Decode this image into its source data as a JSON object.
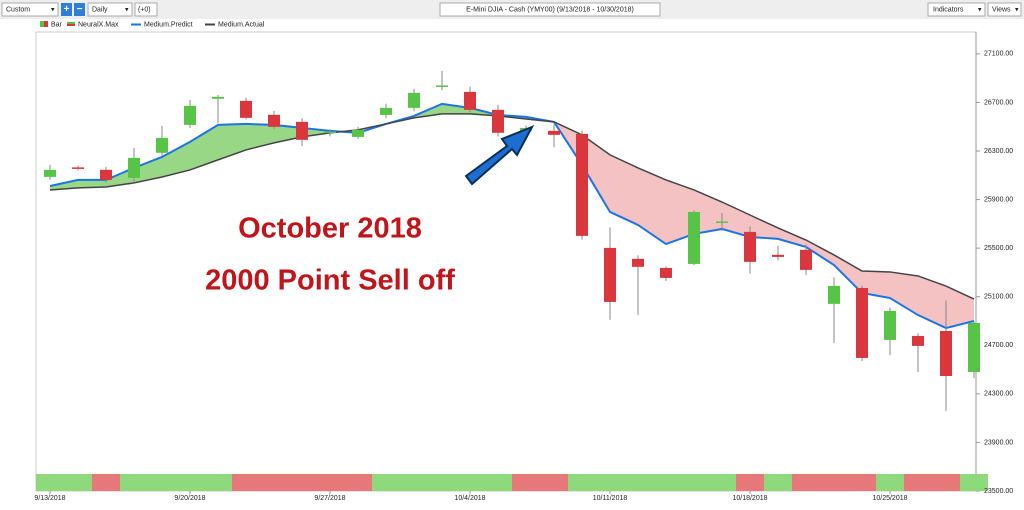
{
  "toolbar": {
    "preset": "Custom",
    "plus": "+",
    "minus": "−",
    "period": "Daily",
    "offset": "(+0)",
    "title": "E-Mini DJIA - Cash (YMY00) (9/13/2018 - 10/30/2018)",
    "indicators": "Indicators",
    "views": "Views"
  },
  "chart_data": {
    "type": "candlestick",
    "bar_legend": "Bar",
    "signal_legend": "NeuralX.Max",
    "annotations": [
      "October 2018",
      "2000 Point Sell off"
    ],
    "categories": [
      "9/13/2018",
      null,
      null,
      null,
      null,
      "9/20/2018",
      null,
      null,
      null,
      null,
      "9/27/2018",
      null,
      null,
      null,
      null,
      "10/4/2018",
      null,
      null,
      null,
      null,
      "10/11/2018",
      null,
      null,
      null,
      null,
      "10/18/2018",
      null,
      null,
      null,
      null,
      "10/25/2018",
      null,
      null,
      null
    ],
    "open": [
      26087,
      26165,
      26145,
      26079,
      26285,
      26515,
      26730,
      26713,
      26598,
      26540,
      26455,
      26416,
      26597,
      26655,
      26835,
      26787,
      26639,
      26466,
      26466,
      26441,
      25502,
      25412,
      25337,
      25370,
      25710,
      25634,
      25445,
      25486,
      25041,
      25172,
      24744,
      24777,
      24818,
      24480
    ],
    "high": [
      26186,
      26180,
      26170,
      26326,
      26507,
      26720,
      26760,
      26740,
      26630,
      26570,
      26480,
      26500,
      26690,
      26810,
      26960,
      26830,
      26680,
      26510,
      26520,
      26470,
      25670,
      25440,
      25350,
      25810,
      25790,
      25680,
      25520,
      25530,
      25260,
      25190,
      25010,
      24800,
      25070,
      24900
    ],
    "low": [
      26062,
      26140,
      26040,
      26040,
      26260,
      26490,
      26530,
      26560,
      26480,
      26340,
      26420,
      26400,
      26570,
      26630,
      26800,
      26620,
      26420,
      26460,
      26330,
      25570,
      24910,
      24950,
      25230,
      25360,
      25640,
      25290,
      25400,
      25280,
      24720,
      24570,
      24620,
      24480,
      24160,
      24430
    ],
    "close": [
      26145,
      26155,
      26062,
      26243,
      26408,
      26672,
      26746,
      26573,
      26499,
      26392,
      26460,
      26474,
      26655,
      26779,
      26840,
      26639,
      26450,
      26490,
      26433,
      25601,
      25057,
      25346,
      25255,
      25798,
      25720,
      25387,
      25428,
      25321,
      25189,
      24596,
      24983,
      24695,
      24447,
      24884
    ],
    "up_color": "#58c447",
    "down_color": "#d9363e",
    "series": [
      {
        "name": "Medium.Predict",
        "color": "#1c74e8",
        "values": [
          26012,
          26062,
          26062,
          26161,
          26251,
          26375,
          26515,
          26523,
          26515,
          26490,
          26466,
          26449,
          26523,
          26589,
          26688,
          26655,
          26597,
          26581,
          26540,
          26185,
          25798,
          25691,
          25534,
          25617,
          25658,
          25592,
          25576,
          25510,
          25361,
          25131,
          25089,
          24949,
          24842,
          24900
        ]
      },
      {
        "name": "Medium.Actual",
        "color": "#444444",
        "values": [
          25979,
          25996,
          26004,
          26037,
          26086,
          26144,
          26227,
          26309,
          26367,
          26416,
          26449,
          26474,
          26523,
          26573,
          26606,
          26606,
          26589,
          26564,
          26540,
          26433,
          26268,
          26161,
          26062,
          25979,
          25880,
          25773,
          25666,
          25567,
          25444,
          25312,
          25304,
          25271,
          25188,
          25081
        ]
      }
    ],
    "fill_colors": {
      "above": "#97d786",
      "below": "#f4c2c2"
    },
    "signal_colors": [
      "#8fd97d",
      "#8fd97d",
      "#e6787a",
      "#8fd97d",
      "#8fd97d",
      "#8fd97d",
      "#8fd97d",
      "#e6787a",
      "#e6787a",
      "#e6787a",
      "#e6787a",
      "#e6787a",
      "#8fd97d",
      "#8fd97d",
      "#8fd97d",
      "#8fd97d",
      "#8fd97d",
      "#e6787a",
      "#e6787a",
      "#8fd97d",
      "#8fd97d",
      "#8fd97d",
      "#8fd97d",
      "#8fd97d",
      "#8fd97d",
      "#e6787a",
      "#8fd97d",
      "#e6787a",
      "#e6787a",
      "#e6787a",
      "#8fd97d",
      "#e6787a",
      "#e6787a",
      "#8fd97d"
    ],
    "ylim": [
      23500,
      27280
    ],
    "yticks": [
      {
        "value": 23500,
        "label": "23500.00"
      },
      {
        "value": 23900,
        "label": "23900.00"
      },
      {
        "value": 24300,
        "label": "24300.00"
      },
      {
        "value": 24700,
        "label": "24700.00"
      },
      {
        "value": 25100,
        "label": "25100.00"
      },
      {
        "value": 25500,
        "label": "25500.00"
      },
      {
        "value": 25900,
        "label": "25900.00"
      },
      {
        "value": 26300,
        "label": "26300.00"
      },
      {
        "value": 26700,
        "label": "26700.00"
      },
      {
        "value": 27100,
        "label": "27100.00"
      }
    ]
  }
}
